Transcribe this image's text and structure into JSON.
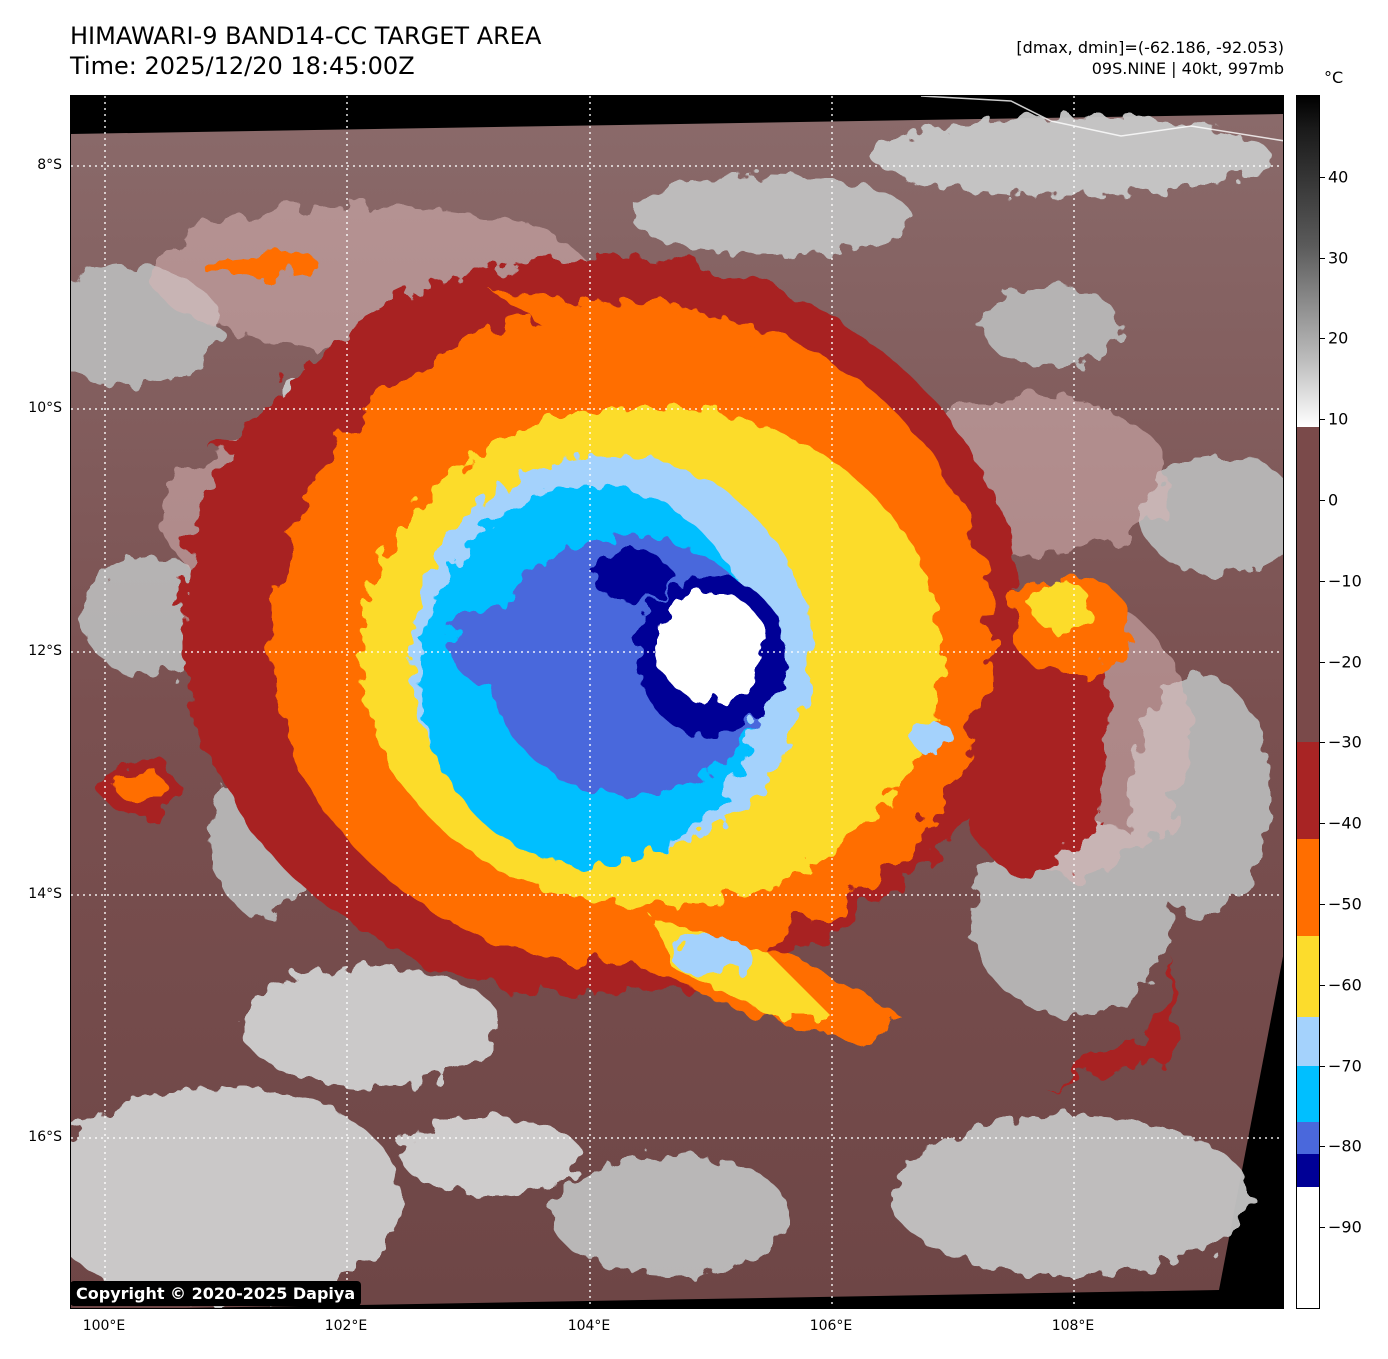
{
  "header": {
    "title_line1": "HIMAWARI-9 BAND14-CC TARGET AREA",
    "title_line2": "Time: 2025/12/20 18:45:00Z",
    "info_line1": "[dmax, dmin]=(-62.186, -92.053)",
    "info_line2": "09S.NINE | 40kt, 997mb"
  },
  "map": {
    "lat_labels": [
      "8°S",
      "10°S",
      "12°S",
      "14°S",
      "16°S"
    ],
    "lon_labels": [
      "100°E",
      "102°E",
      "104°E",
      "106°E",
      "108°E"
    ],
    "copyright": "Copyright © 2020-2025 Dapiya"
  },
  "colorbar": {
    "unit": "°C",
    "tick_labels": [
      "40",
      "30",
      "20",
      "10",
      "0",
      "−10",
      "−20",
      "−30",
      "−40",
      "−50",
      "−60",
      "−70",
      "−80",
      "−90"
    ],
    "bands": [
      {
        "from": 50,
        "to": 9,
        "color": "gray-gradient"
      },
      {
        "from": 9,
        "to": -30,
        "color": "#7a4a4a"
      },
      {
        "from": -30,
        "to": -42,
        "color": "#a82424"
      },
      {
        "from": -42,
        "to": -54,
        "color": "#ff6e00"
      },
      {
        "from": -54,
        "to": -64,
        "color": "#fcdc2c"
      },
      {
        "from": -64,
        "to": -70,
        "color": "#a4d2fc"
      },
      {
        "from": -70,
        "to": -77,
        "color": "#00bfff"
      },
      {
        "from": -77,
        "to": -81,
        "color": "#4a68dc"
      },
      {
        "from": -81,
        "to": -85,
        "color": "#000096"
      },
      {
        "from": -85,
        "to": -100,
        "color": "#ffffff"
      }
    ]
  }
}
